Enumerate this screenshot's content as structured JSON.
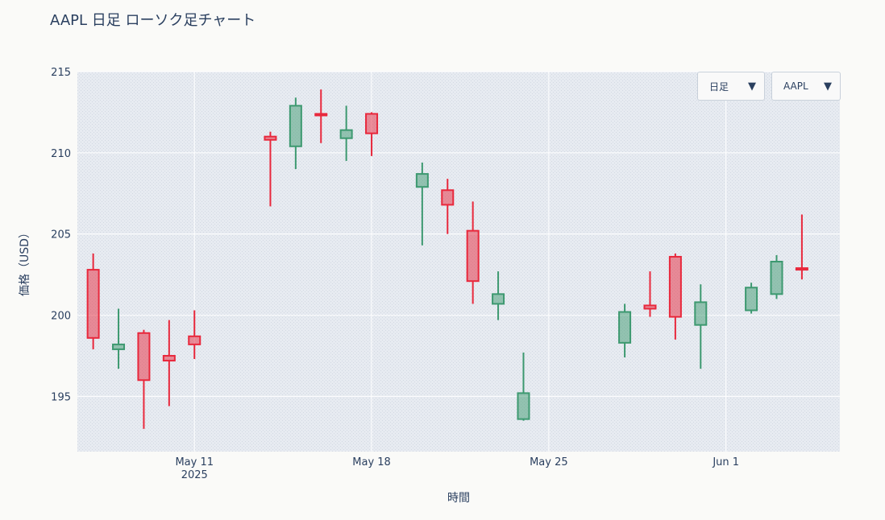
{
  "chart_data": {
    "type": "candlestick",
    "title": "AAPL 日足 ローソク足チャート",
    "xlabel": "時間",
    "ylabel": "価格（USD）",
    "ylim": [
      191.6,
      215
    ],
    "yticks": [
      195,
      200,
      205,
      210,
      215
    ],
    "xticks": [
      {
        "date": "2025-05-11",
        "label": "May 11",
        "sublabel": "2025"
      },
      {
        "date": "2025-05-18",
        "label": "May 18",
        "sublabel": ""
      },
      {
        "date": "2025-05-25",
        "label": "May 25",
        "sublabel": ""
      },
      {
        "date": "2025-06-01",
        "label": "Jun 1",
        "sublabel": ""
      }
    ],
    "xrange": [
      "2025-05-06T09:00",
      "2025-06-05T12:00"
    ],
    "increasing_color": "#3d9970",
    "decreasing_color": "#e8283c",
    "candles": [
      {
        "date": "2025-05-07",
        "open": 202.8,
        "high": 203.8,
        "low": 197.9,
        "close": 198.6
      },
      {
        "date": "2025-05-08",
        "open": 197.9,
        "high": 200.4,
        "low": 196.7,
        "close": 198.2
      },
      {
        "date": "2025-05-09",
        "open": 198.9,
        "high": 199.1,
        "low": 193.0,
        "close": 196.0
      },
      {
        "date": "2025-05-10",
        "open": 197.5,
        "high": 199.7,
        "low": 194.4,
        "close": 197.2
      },
      {
        "date": "2025-05-11",
        "open": 198.7,
        "high": 200.3,
        "low": 197.3,
        "close": 198.2
      },
      {
        "date": "2025-05-14",
        "open": 211.0,
        "high": 211.3,
        "low": 206.7,
        "close": 210.8
      },
      {
        "date": "2025-05-15",
        "open": 210.4,
        "high": 213.4,
        "low": 209.0,
        "close": 212.9
      },
      {
        "date": "2025-05-16",
        "open": 212.4,
        "high": 213.9,
        "low": 210.6,
        "close": 212.3
      },
      {
        "date": "2025-05-17",
        "open": 210.9,
        "high": 212.9,
        "low": 209.5,
        "close": 211.4
      },
      {
        "date": "2025-05-18",
        "open": 212.4,
        "high": 212.5,
        "low": 209.8,
        "close": 211.2
      },
      {
        "date": "2025-05-20",
        "open": 207.9,
        "high": 209.4,
        "low": 204.3,
        "close": 208.7
      },
      {
        "date": "2025-05-21",
        "open": 207.7,
        "high": 208.4,
        "low": 205.0,
        "close": 206.8
      },
      {
        "date": "2025-05-22",
        "open": 205.2,
        "high": 207.0,
        "low": 200.7,
        "close": 202.1
      },
      {
        "date": "2025-05-23",
        "open": 200.7,
        "high": 202.7,
        "low": 199.7,
        "close": 201.3
      },
      {
        "date": "2025-05-24",
        "open": 193.6,
        "high": 197.7,
        "low": 193.5,
        "close": 195.2
      },
      {
        "date": "2025-05-28",
        "open": 198.3,
        "high": 200.7,
        "low": 197.4,
        "close": 200.2
      },
      {
        "date": "2025-05-29",
        "open": 200.6,
        "high": 202.7,
        "low": 199.9,
        "close": 200.4
      },
      {
        "date": "2025-05-30",
        "open": 203.6,
        "high": 203.8,
        "low": 198.5,
        "close": 199.9
      },
      {
        "date": "2025-05-31",
        "open": 199.4,
        "high": 201.9,
        "low": 196.7,
        "close": 200.8
      },
      {
        "date": "2025-06-02",
        "open": 200.3,
        "high": 202.0,
        "low": 200.1,
        "close": 201.7
      },
      {
        "date": "2025-06-03",
        "open": 201.3,
        "high": 203.7,
        "low": 201.0,
        "close": 203.3
      },
      {
        "date": "2025-06-04",
        "open": 202.9,
        "high": 206.2,
        "low": 202.2,
        "close": 202.8
      }
    ],
    "grid": true
  },
  "controls": {
    "timeframe_label": "日足",
    "symbol_label": "AAPL",
    "arrow": "▼"
  }
}
